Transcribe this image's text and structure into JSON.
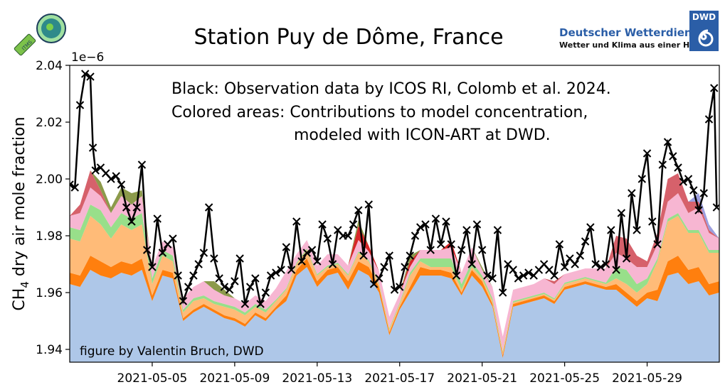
{
  "header": {
    "title": "Station Puy de Dôme, France",
    "logo_left_text": "ITMS",
    "logo_right": {
      "name": "Deutscher Wetterdienst",
      "slogan": "Wetter und Klima aus einer Hand",
      "badge": "DWD",
      "brand_color": "#2b5ea7"
    }
  },
  "chart_data": {
    "type": "area",
    "title": "Station Puy de Dôme, France",
    "xlabel": "",
    "ylabel": "CH4 dry air mole fraction",
    "ylabel_main": "CH",
    "ylabel_sub": "4",
    "ylabel_rest": " dry air mole fraction",
    "y_multiplier": "1e−6",
    "ylim": [
      1.9355,
      2.04
    ],
    "xlim": [
      "2021-05-01 00:00",
      "2021-06-01 12:00"
    ],
    "grid": false,
    "yticks": [
      "1.94",
      "1.96",
      "1.98",
      "2.00",
      "2.02",
      "2.04"
    ],
    "xticks": [
      "2021-05-05",
      "2021-05-09",
      "2021-05-13",
      "2021-05-17",
      "2021-05-21",
      "2021-05-25",
      "2021-05-29"
    ],
    "annotations": {
      "line1": "Black: Observation data by ICOS RI, Colomb et al. 2024.",
      "line2": "Colored areas: Contributions to model concentration,",
      "line3": "modeled with ICON-ART at DWD.",
      "credit": "figure by Valentin Bruch, DWD"
    },
    "stack_x": [
      "2021-05-01 00:00",
      "2021-05-01 12:00",
      "2021-05-02 00:00",
      "2021-05-02 12:00",
      "2021-05-03 00:00",
      "2021-05-03 12:00",
      "2021-05-04 00:00",
      "2021-05-04 12:00",
      "2021-05-05 00:00",
      "2021-05-05 12:00",
      "2021-05-06 00:00",
      "2021-05-06 12:00",
      "2021-05-07 00:00",
      "2021-05-07 12:00",
      "2021-05-08 00:00",
      "2021-05-08 12:00",
      "2021-05-09 00:00",
      "2021-05-09 12:00",
      "2021-05-10 00:00",
      "2021-05-10 12:00",
      "2021-05-11 00:00",
      "2021-05-11 12:00",
      "2021-05-12 00:00",
      "2021-05-12 12:00",
      "2021-05-13 00:00",
      "2021-05-13 12:00",
      "2021-05-14 00:00",
      "2021-05-14 12:00",
      "2021-05-15 00:00",
      "2021-05-15 12:00",
      "2021-05-16 00:00",
      "2021-05-16 12:00",
      "2021-05-17 00:00",
      "2021-05-17 12:00",
      "2021-05-18 00:00",
      "2021-05-18 12:00",
      "2021-05-19 00:00",
      "2021-05-19 12:00",
      "2021-05-20 00:00",
      "2021-05-20 12:00",
      "2021-05-21 00:00",
      "2021-05-21 12:00",
      "2021-05-22 00:00",
      "2021-05-22 12:00",
      "2021-05-23 00:00",
      "2021-05-23 12:00",
      "2021-05-24 00:00",
      "2021-05-24 12:00",
      "2021-05-25 00:00",
      "2021-05-25 12:00",
      "2021-05-26 00:00",
      "2021-05-26 12:00",
      "2021-05-27 00:00",
      "2021-05-27 12:00",
      "2021-05-28 00:00",
      "2021-05-28 12:00",
      "2021-05-29 00:00",
      "2021-05-29 12:00",
      "2021-05-30 00:00",
      "2021-05-30 12:00",
      "2021-05-31 00:00",
      "2021-05-31 12:00",
      "2021-06-01 00:00",
      "2021-06-01 12:00"
    ],
    "stack_baseline_values": [
      1.963,
      1.962,
      1.968,
      1.966,
      1.965,
      1.967,
      1.966,
      1.968,
      1.957,
      1.966,
      1.965,
      1.95,
      1.953,
      1.955,
      1.953,
      1.951,
      1.95,
      1.948,
      1.952,
      1.95,
      1.954,
      1.957,
      1.966,
      1.969,
      1.962,
      1.966,
      1.967,
      1.961,
      1.968,
      1.966,
      1.96,
      1.945,
      1.954,
      1.96,
      1.966,
      1.966,
      1.966,
      1.965,
      1.959,
      1.966,
      1.962,
      1.955,
      1.937,
      1.955,
      1.956,
      1.957,
      1.958,
      1.956,
      1.961,
      1.962,
      1.963,
      1.962,
      1.961,
      1.961,
      1.958,
      1.955,
      1.958,
      1.957,
      1.966,
      1.967,
      1.963,
      1.964,
      1.959,
      1.96
    ],
    "stack_series": [
      {
        "color": "#ff7f0e",
        "values": [
          0.004,
          0.004,
          0.005,
          0.005,
          0.004,
          0.004,
          0.004,
          0.004,
          0.002,
          0.002,
          0.002,
          0.001,
          0.001,
          0.001,
          0.001,
          0.001,
          0.001,
          0.001,
          0.001,
          0.001,
          0.001,
          0.002,
          0.002,
          0.003,
          0.002,
          0.002,
          0.002,
          0.003,
          0.003,
          0.003,
          0.002,
          0.001,
          0.001,
          0.002,
          0.003,
          0.002,
          0.002,
          0.002,
          0.001,
          0.002,
          0.002,
          0.001,
          0.001,
          0.001,
          0.001,
          0.001,
          0.001,
          0.001,
          0.001,
          0.001,
          0.001,
          0.001,
          0.001,
          0.002,
          0.002,
          0.002,
          0.002,
          0.004,
          0.005,
          0.006,
          0.005,
          0.005,
          0.004,
          0.004
        ]
      },
      {
        "color": "#ffbb78",
        "values": [
          0.012,
          0.012,
          0.014,
          0.013,
          0.01,
          0.013,
          0.012,
          0.012,
          0.004,
          0.005,
          0.004,
          0.002,
          0.003,
          0.002,
          0.002,
          0.003,
          0.003,
          0.003,
          0.002,
          0.002,
          0.002,
          0.002,
          0.002,
          0.003,
          0.002,
          0.001,
          0.001,
          0.002,
          0.003,
          0.002,
          0.001,
          0.001,
          0.001,
          0.004,
          0.002,
          0.001,
          0.001,
          0.002,
          0.001,
          0.001,
          0.001,
          0.001,
          0.001,
          0.0005,
          0.0005,
          0.0005,
          0.0005,
          0.0005,
          0.001,
          0.001,
          0.001,
          0.001,
          0.001,
          0.002,
          0.003,
          0.003,
          0.003,
          0.01,
          0.014,
          0.014,
          0.013,
          0.012,
          0.011,
          0.01
        ]
      },
      {
        "color": "#98df8a",
        "values": [
          0.004,
          0.004,
          0.004,
          0.005,
          0.004,
          0.004,
          0.004,
          0.004,
          0.002,
          0.002,
          0.002,
          0.001,
          0.001,
          0.001,
          0.001,
          0.001,
          0.001,
          0.001,
          0.001,
          0.001,
          0.0005,
          0.0005,
          0.0005,
          0.0005,
          0.0005,
          0.0005,
          0.0005,
          0.0005,
          0.0005,
          0.0005,
          0.0005,
          0.0005,
          0.0005,
          0.001,
          0.001,
          0.003,
          0.003,
          0.003,
          0.002,
          0.002,
          0.001,
          0.001,
          0.0005,
          0.0005,
          0.0005,
          0.0005,
          0.0005,
          0.0005,
          0.0005,
          0.0005,
          0.0005,
          0.0005,
          0.0005,
          0.004,
          0.005,
          0.003,
          0.002,
          0.001,
          0.001,
          0.001,
          0.001,
          0.001,
          0.001,
          0.001
        ]
      },
      {
        "color": "#f7b6d2",
        "values": [
          0.004,
          0.006,
          0.006,
          0.005,
          0.005,
          0.006,
          0.005,
          0.006,
          0.004,
          0.003,
          0.003,
          0.004,
          0.004,
          0.005,
          0.004,
          0.003,
          0.003,
          0.003,
          0.003,
          0.003,
          0.004,
          0.006,
          0.003,
          0.003,
          0.003,
          0.004,
          0.003,
          0.003,
          0.004,
          0.003,
          0.004,
          0.004,
          0.003,
          0.002,
          0.003,
          0.003,
          0.003,
          0.004,
          0.004,
          0.005,
          0.002,
          0.004,
          0.005,
          0.004,
          0.004,
          0.004,
          0.005,
          0.005,
          0.003,
          0.003,
          0.003,
          0.004,
          0.005,
          0.005,
          0.004,
          0.006,
          0.004,
          0.005,
          0.006,
          0.007,
          0.006,
          0.008,
          0.006,
          0.004
        ]
      },
      {
        "color": "#d6616b",
        "values": [
          0,
          0.003,
          0.006,
          0.002,
          0,
          0,
          0,
          0,
          0,
          0,
          0,
          0,
          0,
          0,
          0,
          0,
          0,
          0,
          0,
          0,
          0,
          0,
          0,
          0,
          0,
          0,
          0,
          0,
          0,
          0,
          0,
          0,
          0,
          0,
          0,
          0,
          0,
          0,
          0,
          0,
          0,
          0,
          0,
          0,
          0,
          0,
          0,
          0.001,
          0,
          0,
          0,
          0,
          0,
          0.006,
          0.007,
          0.004,
          0.002,
          0.004,
          0.008,
          0.007,
          0.004,
          0.002,
          0.001,
          0
        ]
      },
      {
        "color": "#d62728",
        "values": [
          0,
          0,
          0,
          0,
          0,
          0,
          0,
          0,
          0,
          0,
          0,
          0,
          0,
          0,
          0,
          0,
          0,
          0,
          0,
          0,
          0,
          0,
          0,
          0,
          0,
          0,
          0,
          0,
          0.005,
          0.002,
          0,
          0,
          0,
          0.002,
          0,
          0,
          0,
          0.002,
          0,
          0,
          0,
          0,
          0,
          0,
          0,
          0,
          0,
          0,
          0,
          0,
          0,
          0,
          0,
          0,
          0,
          0,
          0,
          0,
          0,
          0,
          0,
          0,
          0,
          0
        ]
      },
      {
        "color": "#8c9a4b",
        "values": [
          0,
          0,
          0,
          0.003,
          0.002,
          0.003,
          0.004,
          0.002,
          0,
          0,
          0,
          0,
          0,
          0,
          0.003,
          0.002,
          0,
          0,
          0,
          0,
          0,
          0,
          0,
          0,
          0,
          0,
          0,
          0,
          0.002,
          0,
          0,
          0,
          0,
          0.002,
          0,
          0,
          0,
          0,
          0,
          0,
          0.001,
          0,
          0,
          0,
          0,
          0,
          0,
          0,
          0,
          0,
          0,
          0,
          0,
          0,
          0,
          0,
          0,
          0,
          0,
          0,
          0,
          0,
          0,
          0
        ]
      },
      {
        "color": "#9c9ede",
        "values": [
          0,
          0,
          0,
          0,
          0,
          0,
          0,
          0,
          0,
          0,
          0,
          0,
          0,
          0,
          0,
          0,
          0,
          0,
          0,
          0,
          0,
          0,
          0,
          0,
          0,
          0,
          0,
          0,
          0,
          0,
          0,
          0,
          0,
          0,
          0,
          0,
          0,
          0,
          0,
          0,
          0,
          0,
          0,
          0,
          0,
          0,
          0,
          0,
          0,
          0,
          0,
          0,
          0,
          0,
          0,
          0,
          0,
          0,
          0,
          0,
          0,
          0.003,
          0.002,
          0
        ]
      }
    ],
    "stack_baseline_color": "#aec7e8",
    "observation_color": "#000000",
    "observations": [
      [
        "2021-05-01 00:00",
        1.998
      ],
      [
        "2021-05-01 06:00",
        1.997
      ],
      [
        "2021-05-01 12:00",
        2.026
      ],
      [
        "2021-05-01 18:00",
        2.037
      ],
      [
        "2021-05-02 00:00",
        2.036
      ],
      [
        "2021-05-02 03:00",
        2.011
      ],
      [
        "2021-05-02 06:00",
        2.003
      ],
      [
        "2021-05-02 12:00",
        2.004
      ],
      [
        "2021-05-02 18:00",
        2.002
      ],
      [
        "2021-05-03 00:00",
        2.0
      ],
      [
        "2021-05-03 06:00",
        2.001
      ],
      [
        "2021-05-03 12:00",
        1.998
      ],
      [
        "2021-05-03 18:00",
        1.99
      ],
      [
        "2021-05-04 00:00",
        1.985
      ],
      [
        "2021-05-04 06:00",
        1.99
      ],
      [
        "2021-05-04 12:00",
        2.005
      ],
      [
        "2021-05-04 18:00",
        1.975
      ],
      [
        "2021-05-05 00:00",
        1.969
      ],
      [
        "2021-05-05 06:00",
        1.986
      ],
      [
        "2021-05-05 12:00",
        1.974
      ],
      [
        "2021-05-05 18:00",
        1.977
      ],
      [
        "2021-05-06 00:00",
        1.979
      ],
      [
        "2021-05-06 06:00",
        1.966
      ],
      [
        "2021-05-06 12:00",
        1.957
      ],
      [
        "2021-05-06 18:00",
        1.962
      ],
      [
        "2021-05-07 00:00",
        1.966
      ],
      [
        "2021-05-07 06:00",
        1.97
      ],
      [
        "2021-05-07 12:00",
        1.974
      ],
      [
        "2021-05-07 18:00",
        1.99
      ],
      [
        "2021-05-08 00:00",
        1.972
      ],
      [
        "2021-05-08 06:00",
        1.965
      ],
      [
        "2021-05-08 12:00",
        1.962
      ],
      [
        "2021-05-08 18:00",
        1.961
      ],
      [
        "2021-05-09 00:00",
        1.964
      ],
      [
        "2021-05-09 06:00",
        1.972
      ],
      [
        "2021-05-09 12:00",
        1.956
      ],
      [
        "2021-05-09 18:00",
        1.962
      ],
      [
        "2021-05-10 00:00",
        1.965
      ],
      [
        "2021-05-10 06:00",
        1.956
      ],
      [
        "2021-05-10 12:00",
        1.96
      ],
      [
        "2021-05-10 18:00",
        1.966
      ],
      [
        "2021-05-11 00:00",
        1.967
      ],
      [
        "2021-05-11 06:00",
        1.968
      ],
      [
        "2021-05-11 12:00",
        1.976
      ],
      [
        "2021-05-11 18:00",
        1.968
      ],
      [
        "2021-05-12 00:00",
        1.985
      ],
      [
        "2021-05-12 06:00",
        1.971
      ],
      [
        "2021-05-12 12:00",
        1.974
      ],
      [
        "2021-05-12 18:00",
        1.975
      ],
      [
        "2021-05-13 00:00",
        1.971
      ],
      [
        "2021-05-13 06:00",
        1.984
      ],
      [
        "2021-05-13 12:00",
        1.979
      ],
      [
        "2021-05-13 18:00",
        1.97
      ],
      [
        "2021-05-14 00:00",
        1.982
      ],
      [
        "2021-05-14 06:00",
        1.98
      ],
      [
        "2021-05-14 12:00",
        1.98
      ],
      [
        "2021-05-14 18:00",
        1.984
      ],
      [
        "2021-05-15 00:00",
        1.989
      ],
      [
        "2021-05-15 06:00",
        1.973
      ],
      [
        "2021-05-15 12:00",
        1.991
      ],
      [
        "2021-05-15 18:00",
        1.963
      ],
      [
        "2021-05-16 00:00",
        1.965
      ],
      [
        "2021-05-16 06:00",
        1.969
      ],
      [
        "2021-05-16 12:00",
        1.973
      ],
      [
        "2021-05-16 18:00",
        1.961
      ],
      [
        "2021-05-17 00:00",
        1.962
      ],
      [
        "2021-05-17 06:00",
        1.969
      ],
      [
        "2021-05-17 12:00",
        1.973
      ],
      [
        "2021-05-17 18:00",
        1.98
      ],
      [
        "2021-05-18 00:00",
        1.983
      ],
      [
        "2021-05-18 06:00",
        1.984
      ],
      [
        "2021-05-18 12:00",
        1.975
      ],
      [
        "2021-05-18 18:00",
        1.986
      ],
      [
        "2021-05-19 00:00",
        1.977
      ],
      [
        "2021-05-19 06:00",
        1.985
      ],
      [
        "2021-05-19 12:00",
        1.977
      ],
      [
        "2021-05-19 18:00",
        1.966
      ],
      [
        "2021-05-20 00:00",
        1.975
      ],
      [
        "2021-05-20 06:00",
        1.982
      ],
      [
        "2021-05-20 12:00",
        1.97
      ],
      [
        "2021-05-20 18:00",
        1.984
      ],
      [
        "2021-05-21 00:00",
        1.975
      ],
      [
        "2021-05-21 06:00",
        1.966
      ],
      [
        "2021-05-21 12:00",
        1.965
      ],
      [
        "2021-05-21 18:00",
        1.982
      ],
      [
        "2021-05-22 00:00",
        1.96
      ],
      [
        "2021-05-22 06:00",
        1.97
      ],
      [
        "2021-05-22 12:00",
        1.968
      ],
      [
        "2021-05-22 18:00",
        1.965
      ],
      [
        "2021-05-23 00:00",
        1.966
      ],
      [
        "2021-05-23 06:00",
        1.967
      ],
      [
        "2021-05-23 12:00",
        1.966
      ],
      [
        "2021-05-23 18:00",
        1.968
      ],
      [
        "2021-05-24 00:00",
        1.97
      ],
      [
        "2021-05-24 06:00",
        1.968
      ],
      [
        "2021-05-24 12:00",
        1.966
      ],
      [
        "2021-05-24 18:00",
        1.977
      ],
      [
        "2021-05-25 00:00",
        1.969
      ],
      [
        "2021-05-25 06:00",
        1.972
      ],
      [
        "2021-05-25 12:00",
        1.97
      ],
      [
        "2021-05-25 18:00",
        1.973
      ],
      [
        "2021-05-26 00:00",
        1.978
      ],
      [
        "2021-05-26 06:00",
        1.983
      ],
      [
        "2021-05-26 12:00",
        1.97
      ],
      [
        "2021-05-26 18:00",
        1.969
      ],
      [
        "2021-05-27 00:00",
        1.97
      ],
      [
        "2021-05-27 06:00",
        1.982
      ],
      [
        "2021-05-27 12:00",
        1.968
      ],
      [
        "2021-05-27 18:00",
        1.988
      ],
      [
        "2021-05-28 00:00",
        1.972
      ],
      [
        "2021-05-28 06:00",
        1.995
      ],
      [
        "2021-05-28 12:00",
        1.982
      ],
      [
        "2021-05-28 18:00",
        2.0
      ],
      [
        "2021-05-29 00:00",
        2.009
      ],
      [
        "2021-05-29 06:00",
        1.985
      ],
      [
        "2021-05-29 12:00",
        1.977
      ],
      [
        "2021-05-29 18:00",
        2.005
      ],
      [
        "2021-05-30 00:00",
        2.013
      ],
      [
        "2021-05-30 06:00",
        2.008
      ],
      [
        "2021-05-30 12:00",
        2.004
      ],
      [
        "2021-05-30 18:00",
        1.999
      ],
      [
        "2021-05-31 00:00",
        2.0
      ],
      [
        "2021-05-31 06:00",
        1.996
      ],
      [
        "2021-05-31 12:00",
        1.989
      ],
      [
        "2021-05-31 18:00",
        1.995
      ],
      [
        "2021-06-01 00:00",
        2.021
      ],
      [
        "2021-06-01 06:00",
        2.032
      ],
      [
        "2021-06-01 09:00",
        1.99
      ]
    ]
  }
}
